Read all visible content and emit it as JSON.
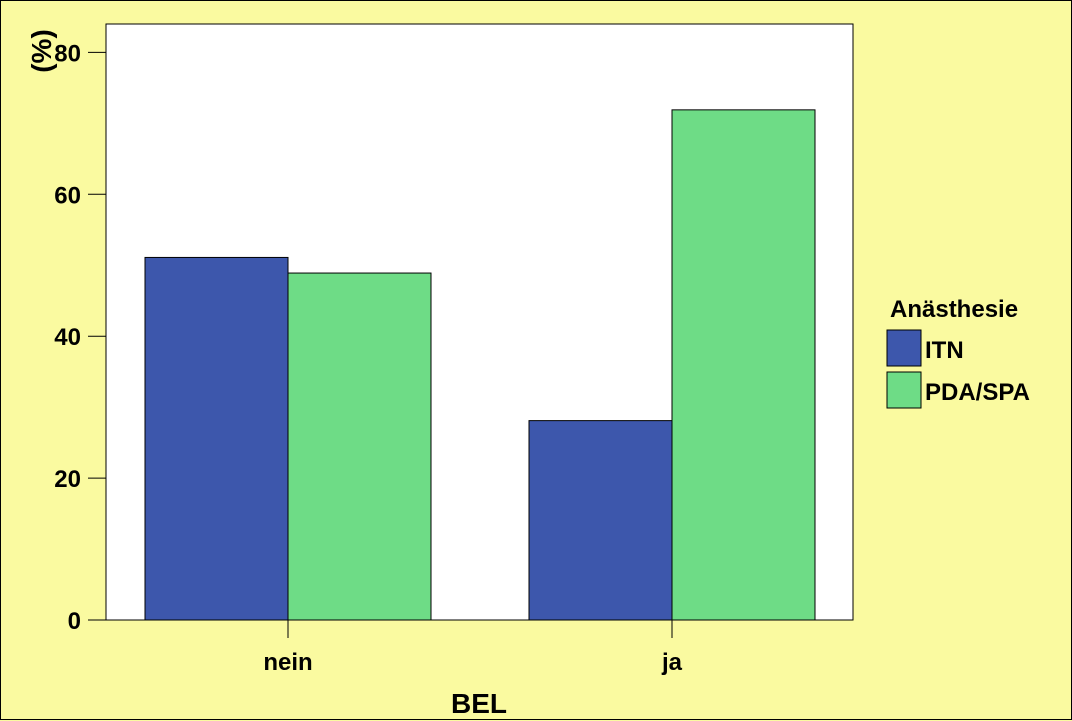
{
  "chart_data": {
    "type": "bar",
    "categories": [
      "nein",
      "ja"
    ],
    "series": [
      {
        "name": "ITN",
        "values": [
          51.1,
          28.1
        ],
        "color": "#3D57AC"
      },
      {
        "name": "PDA/SPA",
        "values": [
          48.9,
          71.9
        ],
        "color": "#6EDC86"
      }
    ],
    "title": "",
    "xlabel": "BEL",
    "ylabel": "(%)",
    "ylim": [
      0,
      84
    ],
    "yticks": [
      0,
      20,
      40,
      60,
      80
    ],
    "grid": false,
    "legend": {
      "title": "Anästhesie",
      "placement": "right"
    },
    "colors": {
      "background": "#FAFAA0",
      "plot_area": "#FFFFFF"
    }
  }
}
